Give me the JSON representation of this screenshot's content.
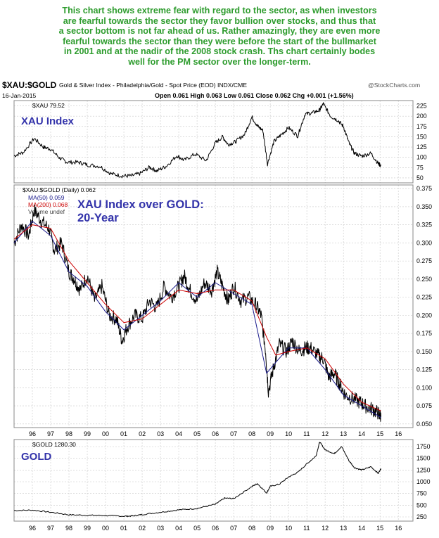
{
  "commentary": [
    "This chart shows extreme fear with regard to the sector, as when investors",
    "are fearful towards the sector they favor bullion over stocks, and thus that",
    "a sector bottom is not far ahead of us. Rather amazingly, they are even more",
    "fearful towards the sector than they were before the start of the bullmarket",
    "in 2001 and at the nadir of the 2008 stock crash. Ths chart certainly bodes",
    "well for the PM sector over the longer-term."
  ],
  "header": {
    "symbol": "$XAU:$GOLD",
    "description": "Gold & Silver Index - Philadelphia/Gold - Spot Price (EOD) INDX/CME",
    "watermark": "@StockCharts.com",
    "date": "16-Jan-2015",
    "ohlc": "Open 0.061  High 0.063  Low 0.061  Close 0.062  Chg +0.001 (+1.56%)"
  },
  "colors": {
    "commentary": "#2e9c2e",
    "price": "#000000",
    "ma50": "#1a1a8c",
    "ma200": "#cc0000",
    "annotation": "#3333aa",
    "grid": "#c8c8c8"
  },
  "x_ticks": [
    "96",
    "97",
    "98",
    "99",
    "00",
    "01",
    "02",
    "03",
    "04",
    "05",
    "06",
    "07",
    "08",
    "09",
    "10",
    "11",
    "12",
    "13",
    "14",
    "15",
    "16"
  ],
  "chart_data": [
    {
      "type": "line",
      "panel": "xau",
      "legend": "$XAU 79.52",
      "annotation": "XAU Index",
      "y_ticks": [
        225,
        200,
        175,
        150,
        125,
        100,
        75,
        50
      ],
      "ylim": [
        38,
        238
      ],
      "x": [
        1995.0,
        1995.5,
        1996.1,
        1996.6,
        1997.0,
        1997.5,
        1997.9,
        1998.5,
        1999.0,
        1999.7,
        2000.3,
        2000.9,
        2001.4,
        2001.9,
        2002.4,
        2002.8,
        2003.3,
        2003.9,
        2004.3,
        2004.9,
        2005.5,
        2006.0,
        2006.4,
        2006.7,
        2007.1,
        2007.6,
        2008.0,
        2008.3,
        2008.6,
        2008.85,
        2009.2,
        2009.6,
        2010.0,
        2010.5,
        2010.9,
        2011.3,
        2011.7,
        2011.9,
        2012.3,
        2012.7,
        2013.0,
        2013.3,
        2013.6,
        2014.0,
        2014.5,
        2014.9,
        2015.05
      ],
      "values": [
        104,
        112,
        146,
        125,
        120,
        98,
        88,
        88,
        82,
        78,
        60,
        55,
        55,
        61,
        76,
        67,
        78,
        104,
        93,
        108,
        92,
        135,
        150,
        131,
        138,
        156,
        198,
        176,
        165,
        84,
        138,
        155,
        172,
        152,
        205,
        208,
        215,
        230,
        200,
        190,
        175,
        135,
        110,
        103,
        110,
        85,
        80
      ]
    },
    {
      "type": "line",
      "panel": "ratio",
      "legend": "$XAU:$GOLD (Daily) 0.062",
      "legend_lines": [
        "MA(50) 0.059",
        "MA(200) 0.068",
        "Volume undef"
      ],
      "annotation": [
        "XAU Index over GOLD:",
        "20-Year"
      ],
      "y_ticks": [
        0.375,
        0.35,
        0.325,
        0.3,
        0.275,
        0.25,
        0.225,
        0.2,
        0.175,
        0.15,
        0.125,
        0.1,
        0.075,
        0.05
      ],
      "ylim": [
        0.045,
        0.38
      ],
      "series": [
        {
          "name": "$XAU:$GOLD",
          "x": [
            1995.0,
            1995.4,
            1995.8,
            1996.1,
            1996.5,
            1996.9,
            1997.2,
            1997.6,
            1998.0,
            1998.3,
            1998.6,
            1999.0,
            1999.4,
            1999.8,
            2000.2,
            2000.6,
            2000.9,
            2001.2,
            2001.6,
            2002.0,
            2002.4,
            2002.8,
            2003.2,
            2003.6,
            2004.0,
            2004.3,
            2004.6,
            2005.0,
            2005.4,
            2005.8,
            2006.1,
            2006.4,
            2006.7,
            2007.0,
            2007.4,
            2007.8,
            2008.2,
            2008.5,
            2008.75,
            2008.9,
            2009.2,
            2009.5,
            2009.9,
            2010.2,
            2010.6,
            2010.9,
            2011.2,
            2011.6,
            2011.9,
            2012.2,
            2012.5,
            2012.8,
            2013.1,
            2013.5,
            2013.9,
            2014.2,
            2014.6,
            2014.9,
            2015.05
          ],
          "values": [
            0.3,
            0.325,
            0.31,
            0.345,
            0.33,
            0.32,
            0.29,
            0.3,
            0.26,
            0.25,
            0.235,
            0.255,
            0.22,
            0.24,
            0.2,
            0.195,
            0.165,
            0.185,
            0.2,
            0.195,
            0.22,
            0.21,
            0.24,
            0.225,
            0.24,
            0.255,
            0.235,
            0.22,
            0.245,
            0.235,
            0.26,
            0.24,
            0.22,
            0.24,
            0.22,
            0.225,
            0.215,
            0.2,
            0.15,
            0.095,
            0.13,
            0.16,
            0.15,
            0.165,
            0.15,
            0.155,
            0.155,
            0.145,
            0.14,
            0.115,
            0.12,
            0.105,
            0.09,
            0.085,
            0.08,
            0.075,
            0.07,
            0.065,
            0.06
          ]
        },
        {
          "name": "MA(50)",
          "x": [
            1995.0,
            1996.0,
            1997.0,
            1998.0,
            1999.0,
            2000.0,
            2001.0,
            2002.0,
            2003.0,
            2004.0,
            2005.0,
            2006.0,
            2007.0,
            2008.0,
            2008.8,
            2009.3,
            2010.0,
            2011.0,
            2012.0,
            2013.0,
            2014.0,
            2015.05
          ],
          "values": [
            0.3,
            0.33,
            0.31,
            0.26,
            0.24,
            0.205,
            0.18,
            0.2,
            0.22,
            0.245,
            0.225,
            0.245,
            0.23,
            0.215,
            0.12,
            0.135,
            0.155,
            0.155,
            0.125,
            0.09,
            0.075,
            0.059
          ]
        },
        {
          "name": "MA(200)",
          "x": [
            1995.0,
            1996.0,
            1997.0,
            1998.0,
            1999.0,
            2000.0,
            2001.0,
            2002.0,
            2003.0,
            2004.0,
            2005.0,
            2006.0,
            2007.0,
            2008.0,
            2008.8,
            2009.3,
            2010.0,
            2011.0,
            2012.0,
            2013.0,
            2014.0,
            2015.05
          ],
          "values": [
            0.305,
            0.325,
            0.32,
            0.275,
            0.245,
            0.215,
            0.19,
            0.195,
            0.215,
            0.235,
            0.23,
            0.235,
            0.235,
            0.22,
            0.17,
            0.145,
            0.15,
            0.155,
            0.14,
            0.105,
            0.08,
            0.068
          ]
        }
      ]
    },
    {
      "type": "line",
      "panel": "gold",
      "legend": "$GOLD 1280.30",
      "annotation": "GOLD",
      "y_ticks": [
        1750,
        1500,
        1250,
        1000,
        750,
        500,
        250
      ],
      "ylim": [
        160,
        1900
      ],
      "x": [
        1995.0,
        1996.0,
        1997.0,
        1998.0,
        1999.0,
        2000.0,
        2001.0,
        2001.5,
        2002.0,
        2003.0,
        2004.0,
        2005.0,
        2006.0,
        2006.5,
        2007.0,
        2008.0,
        2008.3,
        2008.8,
        2009.0,
        2009.5,
        2010.0,
        2010.5,
        2011.0,
        2011.5,
        2011.7,
        2012.0,
        2012.5,
        2012.9,
        2013.3,
        2013.6,
        2014.0,
        2014.5,
        2014.9,
        2015.05
      ],
      "values": [
        385,
        395,
        350,
        295,
        285,
        280,
        265,
        270,
        300,
        350,
        400,
        430,
        520,
        650,
        640,
        900,
        960,
        760,
        900,
        950,
        1100,
        1200,
        1380,
        1550,
        1850,
        1680,
        1600,
        1750,
        1450,
        1300,
        1250,
        1320,
        1180,
        1280
      ]
    }
  ]
}
